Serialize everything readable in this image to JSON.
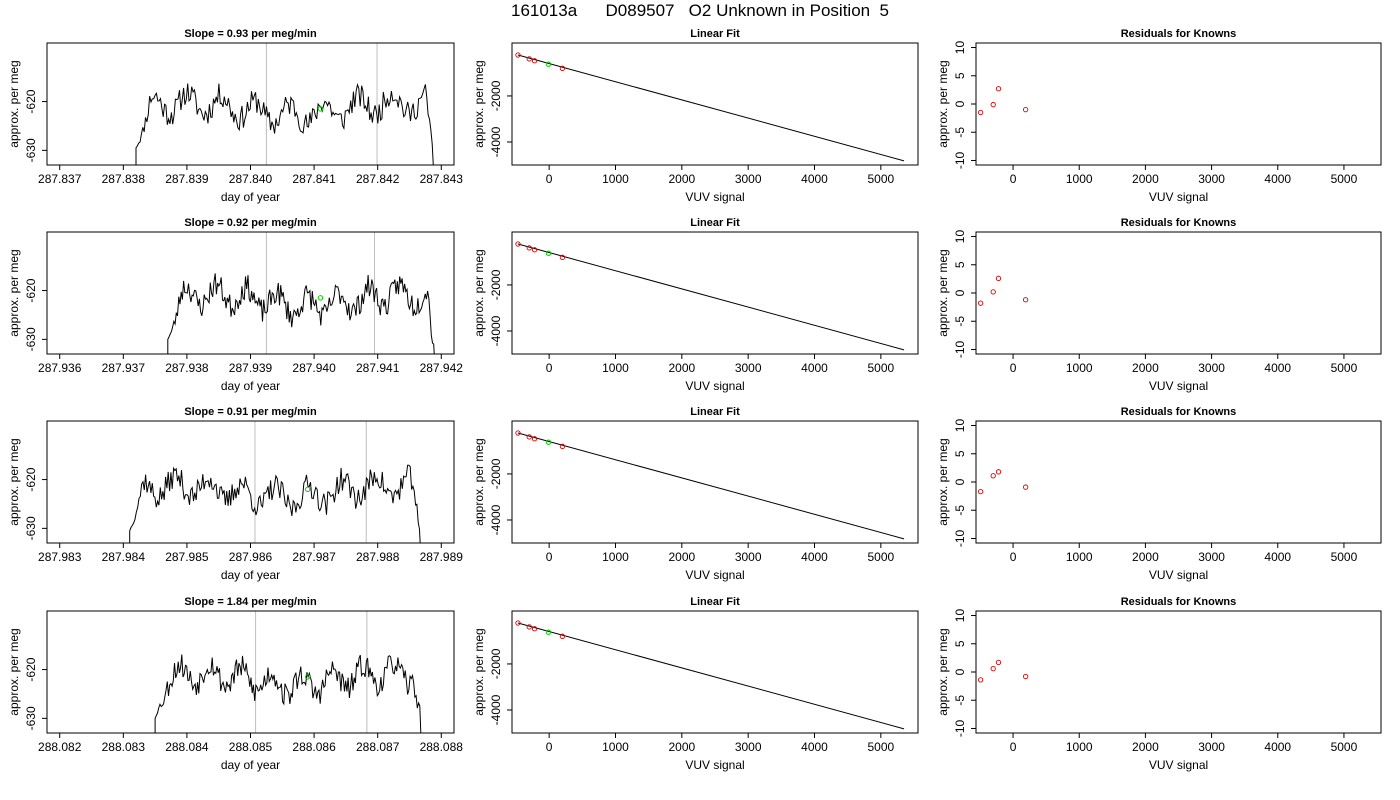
{
  "header": {
    "title": "161013a      D089507   O2 Unknown in Position  5"
  },
  "chart_data": [
    {
      "type": "line",
      "row": 1,
      "title": "Slope =  0.93  per meg/min",
      "xlabel": "day of year",
      "ylabel": "approx. per meg",
      "xlim": [
        287.8368,
        287.8432
      ],
      "ylim": [
        -633,
        -608
      ],
      "xticks": [
        287.837,
        287.838,
        287.839,
        287.84,
        287.841,
        287.842,
        287.843
      ],
      "xtick_labels": [
        "287.837",
        "287.838",
        "287.839",
        "287.840",
        "287.841",
        "287.842",
        "287.843"
      ],
      "yticks": [
        -630,
        -620
      ],
      "ytick_labels": [
        "-630",
        "-620"
      ],
      "series_start": 287.8382,
      "series_end": 287.8429,
      "series_base": -621.5,
      "seed": 11,
      "vlines": [
        287.84025,
        287.84199
      ],
      "highlight_point": {
        "x": 287.8411,
        "y": -621.5
      }
    },
    {
      "type": "scatter",
      "row": 1,
      "title": "Linear Fit",
      "xlabel": "VUV signal",
      "ylabel": "approx. per meg",
      "xlim": [
        -560,
        5560
      ],
      "ylim": [
        -5000,
        300
      ],
      "xticks": [
        0,
        1000,
        2000,
        3000,
        4000,
        5000
      ],
      "xtick_labels": [
        "0",
        "1000",
        "2000",
        "3000",
        "4000",
        "5000"
      ],
      "yticks": [
        -4000,
        -2000
      ],
      "ytick_labels": [
        "-4000",
        "-2000"
      ],
      "fit_line": [
        [
          -470,
          -220
        ],
        [
          5350,
          -4820
        ]
      ],
      "knowns": [
        [
          -470,
          -220
        ],
        [
          -300,
          -390
        ],
        [
          -220,
          -470
        ],
        [
          200,
          -800
        ]
      ],
      "unknown": [
        [
          -10,
          -620
        ]
      ]
    },
    {
      "type": "scatter",
      "row": 1,
      "title": "Residuals for Knowns",
      "xlabel": "VUV signal",
      "ylabel": "approx. per meg",
      "xlim": [
        -560,
        5560
      ],
      "ylim": [
        -10.8,
        10.8
      ],
      "xticks": [
        0,
        1000,
        2000,
        3000,
        4000,
        5000
      ],
      "xtick_labels": [
        "0",
        "1000",
        "2000",
        "3000",
        "4000",
        "5000"
      ],
      "yticks": [
        -10,
        -5,
        0,
        5,
        10
      ],
      "ytick_labels": [
        "-10",
        "-5",
        "0",
        "5",
        "10"
      ],
      "points": [
        [
          -490,
          -1.5
        ],
        [
          -300,
          -0.1
        ],
        [
          -220,
          2.7
        ],
        [
          190,
          -1.0
        ]
      ]
    },
    {
      "type": "line",
      "row": 2,
      "title": "Slope =  0.92  per meg/min",
      "xlabel": "day of year",
      "ylabel": "approx. per meg",
      "xlim": [
        287.9358,
        287.9422
      ],
      "ylim": [
        -633,
        -608
      ],
      "xticks": [
        287.936,
        287.937,
        287.938,
        287.939,
        287.94,
        287.941,
        287.942
      ],
      "xtick_labels": [
        "287.936",
        "287.937",
        "287.938",
        "287.939",
        "287.940",
        "287.941",
        "287.942"
      ],
      "yticks": [
        -630,
        -620
      ],
      "ytick_labels": [
        "-630",
        "-620"
      ],
      "series_start": 287.9377,
      "series_end": 287.9419,
      "series_base": -622,
      "seed": 23,
      "vlines": [
        287.93925,
        287.94095
      ],
      "highlight_point": {
        "x": 287.9401,
        "y": -621.5
      }
    },
    {
      "type": "scatter",
      "row": 2,
      "title": "Linear Fit",
      "xlabel": "VUV signal",
      "ylabel": "approx. per meg",
      "xlim": [
        -560,
        5560
      ],
      "ylim": [
        -5000,
        300
      ],
      "xticks": [
        0,
        1000,
        2000,
        3000,
        4000,
        5000
      ],
      "xtick_labels": [
        "0",
        "1000",
        "2000",
        "3000",
        "4000",
        "5000"
      ],
      "yticks": [
        -4000,
        -2000
      ],
      "ytick_labels": [
        "-4000",
        "-2000"
      ],
      "fit_line": [
        [
          -470,
          -220
        ],
        [
          5350,
          -4820
        ]
      ],
      "knowns": [
        [
          -470,
          -220
        ],
        [
          -300,
          -390
        ],
        [
          -220,
          -470
        ],
        [
          200,
          -800
        ]
      ],
      "unknown": [
        [
          -10,
          -620
        ]
      ]
    },
    {
      "type": "scatter",
      "row": 2,
      "title": "Residuals for Knowns",
      "xlabel": "VUV signal",
      "ylabel": "approx. per meg",
      "xlim": [
        -560,
        5560
      ],
      "ylim": [
        -10.8,
        10.8
      ],
      "xticks": [
        0,
        1000,
        2000,
        3000,
        4000,
        5000
      ],
      "xtick_labels": [
        "0",
        "1000",
        "2000",
        "3000",
        "4000",
        "5000"
      ],
      "yticks": [
        -10,
        -5,
        0,
        5,
        10
      ],
      "ytick_labels": [
        "-10",
        "-5",
        "0",
        "5",
        "10"
      ],
      "points": [
        [
          -490,
          -1.8
        ],
        [
          -300,
          0.2
        ],
        [
          -220,
          2.6
        ],
        [
          190,
          -1.2
        ]
      ]
    },
    {
      "type": "line",
      "row": 3,
      "title": "Slope =  0.91  per meg/min",
      "xlabel": "day of year",
      "ylabel": "approx. per meg",
      "xlim": [
        287.9828,
        287.9892
      ],
      "ylim": [
        -633,
        -608
      ],
      "xticks": [
        287.983,
        287.984,
        287.985,
        287.986,
        287.987,
        287.988,
        287.989
      ],
      "xtick_labels": [
        "287.983",
        "287.984",
        "287.985",
        "287.986",
        "287.987",
        "287.988",
        "287.989"
      ],
      "yticks": [
        -630,
        -620
      ],
      "ytick_labels": [
        "-630",
        "-620"
      ],
      "series_start": 287.9841,
      "series_end": 287.9887,
      "series_base": -622.5,
      "seed": 37,
      "vlines": [
        287.98607,
        287.98782
      ],
      "highlight_point": {
        "x": 287.9869,
        "y": -622
      }
    },
    {
      "type": "scatter",
      "row": 3,
      "title": "Linear Fit",
      "xlabel": "VUV signal",
      "ylabel": "approx. per meg",
      "xlim": [
        -560,
        5560
      ],
      "ylim": [
        -5000,
        300
      ],
      "xticks": [
        0,
        1000,
        2000,
        3000,
        4000,
        5000
      ],
      "xtick_labels": [
        "0",
        "1000",
        "2000",
        "3000",
        "4000",
        "5000"
      ],
      "yticks": [
        -4000,
        -2000
      ],
      "ytick_labels": [
        "-4000",
        "-2000"
      ],
      "fit_line": [
        [
          -470,
          -220
        ],
        [
          5350,
          -4820
        ]
      ],
      "knowns": [
        [
          -470,
          -220
        ],
        [
          -300,
          -390
        ],
        [
          -220,
          -470
        ],
        [
          200,
          -800
        ]
      ],
      "unknown": [
        [
          -10,
          -620
        ]
      ]
    },
    {
      "type": "scatter",
      "row": 3,
      "title": "Residuals for Knowns",
      "xlabel": "VUV signal",
      "ylabel": "approx. per meg",
      "xlim": [
        -560,
        5560
      ],
      "ylim": [
        -10.8,
        10.8
      ],
      "xticks": [
        0,
        1000,
        2000,
        3000,
        4000,
        5000
      ],
      "xtick_labels": [
        "0",
        "1000",
        "2000",
        "3000",
        "4000",
        "5000"
      ],
      "yticks": [
        -10,
        -5,
        0,
        5,
        10
      ],
      "ytick_labels": [
        "-10",
        "-5",
        "0",
        "5",
        "10"
      ],
      "points": [
        [
          -490,
          -1.7
        ],
        [
          -300,
          1.1
        ],
        [
          -220,
          1.8
        ],
        [
          190,
          -0.9
        ]
      ]
    },
    {
      "type": "line",
      "row": 4,
      "title": "Slope =  1.84  per meg/min",
      "xlabel": "day of year",
      "ylabel": "approx. per meg",
      "xlim": [
        288.0818,
        288.0882
      ],
      "ylim": [
        -633,
        -608
      ],
      "xticks": [
        288.082,
        288.083,
        288.084,
        288.085,
        288.086,
        288.087,
        288.088
      ],
      "xtick_labels": [
        "288.082",
        "288.083",
        "288.084",
        "288.085",
        "288.086",
        "288.087",
        "288.088"
      ],
      "yticks": [
        -630,
        -620
      ],
      "ytick_labels": [
        "-630",
        "-620"
      ],
      "series_start": 288.0835,
      "series_end": 288.0877,
      "series_base": -622,
      "seed": 53,
      "vlines": [
        288.08508,
        288.08683
      ],
      "highlight_point": {
        "x": 288.0859,
        "y": -621.5
      }
    },
    {
      "type": "scatter",
      "row": 4,
      "title": "Linear Fit",
      "xlabel": "VUV signal",
      "ylabel": "approx. per meg",
      "xlim": [
        -560,
        5560
      ],
      "ylim": [
        -5000,
        300
      ],
      "xticks": [
        0,
        1000,
        2000,
        3000,
        4000,
        5000
      ],
      "xtick_labels": [
        "0",
        "1000",
        "2000",
        "3000",
        "4000",
        "5000"
      ],
      "yticks": [
        -4000,
        -2000
      ],
      "ytick_labels": [
        "-4000",
        "-2000"
      ],
      "fit_line": [
        [
          -470,
          -220
        ],
        [
          5350,
          -4820
        ]
      ],
      "knowns": [
        [
          -470,
          -220
        ],
        [
          -300,
          -390
        ],
        [
          -220,
          -470
        ],
        [
          200,
          -800
        ]
      ],
      "unknown": [
        [
          -10,
          -620
        ]
      ]
    },
    {
      "type": "scatter",
      "row": 4,
      "title": "Residuals for Knowns",
      "xlabel": "VUV signal",
      "ylabel": "approx. per meg",
      "xlim": [
        -560,
        5560
      ],
      "ylim": [
        -10.8,
        10.8
      ],
      "xticks": [
        0,
        1000,
        2000,
        3000,
        4000,
        5000
      ],
      "xtick_labels": [
        "0",
        "1000",
        "2000",
        "3000",
        "4000",
        "5000"
      ],
      "yticks": [
        -10,
        -5,
        0,
        5,
        10
      ],
      "ytick_labels": [
        "-10",
        "-5",
        "0",
        "5",
        "10"
      ],
      "points": [
        [
          -490,
          -1.4
        ],
        [
          -300,
          0.6
        ],
        [
          -220,
          1.7
        ],
        [
          190,
          -0.8
        ]
      ]
    }
  ],
  "colors": {
    "axis": "#000000",
    "vline": "#bebebe",
    "known_point": "#dd0000",
    "unknown_point": "#00cc00",
    "series_line": "#000000"
  }
}
